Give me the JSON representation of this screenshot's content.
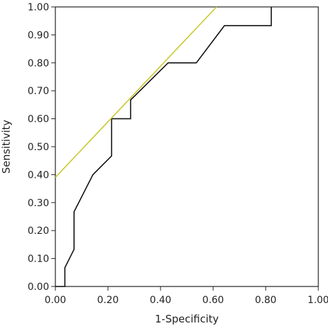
{
  "chart_data": {
    "type": "line",
    "title": "",
    "xlabel": "1-Specificity",
    "ylabel": "Sensitivity",
    "xlim": [
      0,
      1
    ],
    "ylim": [
      0,
      1
    ],
    "x_ticks": [
      "0.00",
      "0.20",
      "0.40",
      "0.60",
      "0.80",
      "1.00"
    ],
    "y_ticks": [
      "0.00",
      "0.10",
      "0.20",
      "0.30",
      "0.40",
      "0.50",
      "0.60",
      "0.70",
      "0.80",
      "0.90",
      "1.00"
    ],
    "grid": false,
    "legend": "none",
    "series": [
      {
        "color": "#111111",
        "x": [
          0.0,
          0.036,
          0.036,
          0.071,
          0.071,
          0.143,
          0.214,
          0.214,
          0.286,
          0.286,
          0.429,
          0.536,
          0.643,
          0.821,
          0.821
        ],
        "y": [
          0.0,
          0.0,
          0.067,
          0.133,
          0.267,
          0.4,
          0.467,
          0.6,
          0.6,
          0.667,
          0.8,
          0.8,
          0.933,
          0.933,
          1.0
        ]
      },
      {
        "color": "#c9c82e",
        "x": [
          0.0,
          0.613
        ],
        "y": [
          0.39,
          1.0
        ]
      }
    ]
  }
}
